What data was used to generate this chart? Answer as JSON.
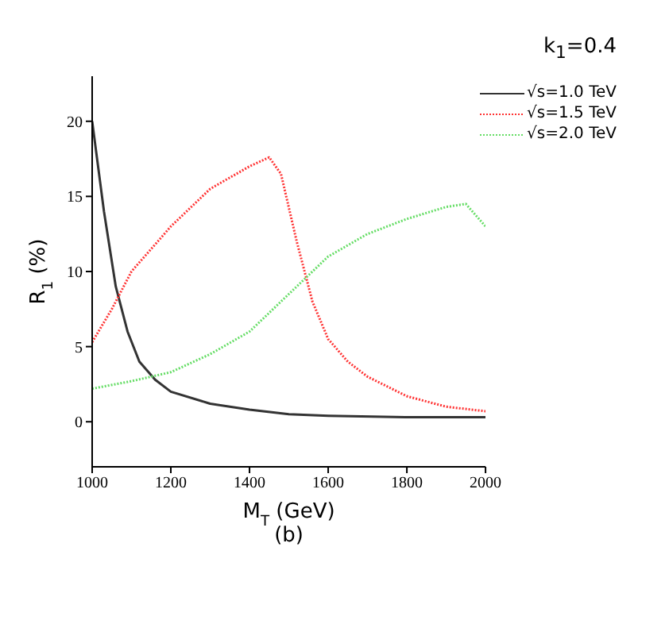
{
  "chart_data": {
    "type": "line",
    "title": "k$_{1}$=0.4",
    "xlabel": "M$_{T}$ (GeV)",
    "ylabel": "R$_{1}$ (%)",
    "annotations": [
      "(b)"
    ],
    "xlim": [
      1000,
      2000
    ],
    "xticks": [
      1000,
      1200,
      1400,
      1600,
      1800,
      2000
    ],
    "ylim": [
      -3,
      23
    ],
    "yticks": [
      0,
      5,
      10,
      15,
      20
    ],
    "grid": false,
    "legend": "top right",
    "marker": "none",
    "series": [
      {
        "name": "√s=1.0 TeV",
        "color": "#333333",
        "line_style": "solid",
        "x": [
          1000,
          1030,
          1060,
          1090,
          1120,
          1160,
          1200,
          1300,
          1400,
          1500,
          1600,
          1800,
          2000
        ],
        "values": [
          20,
          14,
          9,
          6,
          4,
          2.8,
          2,
          1.2,
          0.8,
          0.5,
          0.4,
          0.3,
          0.3
        ]
      },
      {
        "name": "√s=1.5 TeV",
        "color": "#ff3333",
        "line_style": "dotted",
        "x": [
          1000,
          1050,
          1100,
          1200,
          1300,
          1400,
          1450,
          1480,
          1520,
          1560,
          1600,
          1650,
          1700,
          1800,
          1900,
          2000
        ],
        "values": [
          5.3,
          7.5,
          10,
          13,
          15.5,
          17,
          17.6,
          16.5,
          12,
          8,
          5.5,
          4,
          3,
          1.7,
          1,
          0.7
        ]
      },
      {
        "name": "√s=2.0 TeV",
        "color": "#66dd66",
        "line_style": "dotted",
        "x": [
          1000,
          1100,
          1200,
          1300,
          1400,
          1500,
          1600,
          1700,
          1800,
          1900,
          1950,
          2000
        ],
        "values": [
          2.2,
          2.7,
          3.3,
          4.5,
          6,
          8.5,
          11,
          12.5,
          13.5,
          14.3,
          14.5,
          13
        ]
      }
    ]
  }
}
